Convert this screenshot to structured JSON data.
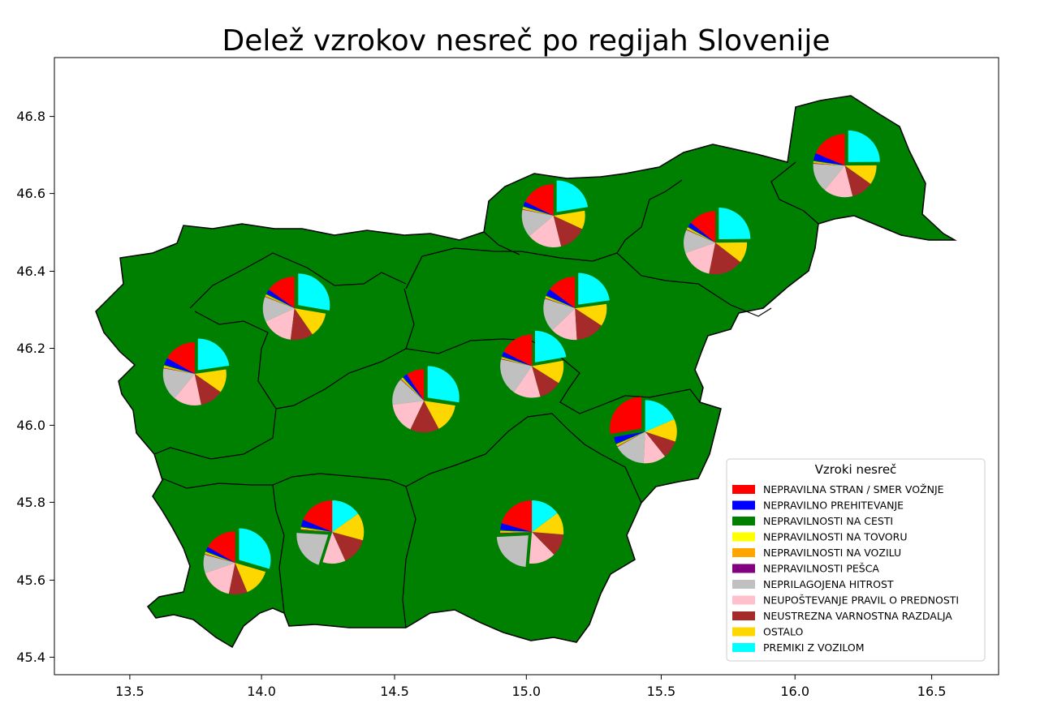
{
  "chart_data": {
    "type": "pie",
    "title": "Delež vzrokov nesreč po regijah Slovenije",
    "xlabel": "",
    "ylabel": "",
    "xlim": [
      13.25,
      16.75
    ],
    "ylim": [
      45.35,
      46.95
    ],
    "xticks": [
      "13.5",
      "14.0",
      "14.5",
      "15.0",
      "15.5",
      "16.0",
      "16.5"
    ],
    "yticks": [
      "45.4",
      "45.6",
      "45.8",
      "46.0",
      "46.2",
      "46.4",
      "46.6",
      "46.8"
    ],
    "grid": false,
    "map_fill_color": "#008000",
    "legend": {
      "title": "Vzroki nesreč",
      "placement": "lower-right"
    },
    "categories": [
      {
        "name": "NEPRAVILNA STRAN / SMER VOŽNJE",
        "color": "#ff0000"
      },
      {
        "name": "NEPRAVILNO PREHITEVANJE",
        "color": "#0000ff"
      },
      {
        "name": "NEPRAVILNOSTI NA CESTI",
        "color": "#008000"
      },
      {
        "name": "NEPRAVILNOSTI NA TOVORU",
        "color": "#ffff00"
      },
      {
        "name": "NEPRAVILNOSTI NA VOZILU",
        "color": "#ffa500"
      },
      {
        "name": "NEPRAVILNOSTI PEŠCA",
        "color": "#800080"
      },
      {
        "name": "NEPRILAGOJENA HITROST",
        "color": "#c0c0c0"
      },
      {
        "name": "NEUPOŠTEVANJE PRAVIL O PREDNOSTI",
        "color": "#ffc0cb"
      },
      {
        "name": "NEUSTREZNA VARNOSTNA RAZDALJA",
        "color": "#a52a2a"
      },
      {
        "name": "OSTALO",
        "color": "#ffd700"
      },
      {
        "name": "PREMIKI Z VOZILOM",
        "color": "#00ffff"
      }
    ],
    "regions": [
      {
        "lon": 16.18,
        "lat": 46.67,
        "values": [
          15,
          3,
          0.4,
          0.3,
          0.5,
          0.2,
          12,
          12,
          9,
          8,
          20
        ]
      },
      {
        "lon": 15.1,
        "lat": 46.54,
        "values": [
          15,
          2,
          0.4,
          0.4,
          0.6,
          0.2,
          12,
          15,
          12,
          8,
          19
        ]
      },
      {
        "lon": 15.7,
        "lat": 46.47,
        "values": [
          12,
          2,
          0.4,
          0.4,
          0.6,
          0.2,
          10,
          14,
          15,
          9,
          21
        ]
      },
      {
        "lon": 14.14,
        "lat": 46.3,
        "values": [
          13,
          2,
          0.4,
          0.4,
          0.6,
          0.2,
          11,
          14,
          10,
          11,
          24
        ]
      },
      {
        "lon": 15.18,
        "lat": 46.3,
        "values": [
          13,
          3,
          0.4,
          0.4,
          0.6,
          0.2,
          15,
          12,
          13,
          10,
          20
        ]
      },
      {
        "lon": 13.77,
        "lat": 46.13,
        "values": [
          14,
          3,
          0.4,
          0.4,
          0.6,
          0.2,
          14,
          12,
          10,
          10,
          19
        ]
      },
      {
        "lon": 15.02,
        "lat": 46.15,
        "values": [
          15,
          2,
          0.4,
          0.3,
          0.5,
          0.2,
          16,
          12,
          10,
          10,
          19
        ]
      },
      {
        "lon": 14.62,
        "lat": 46.06,
        "values": [
          8,
          2,
          0.4,
          0.4,
          0.6,
          0.2,
          12,
          14,
          13,
          13,
          24
        ]
      },
      {
        "lon": 15.44,
        "lat": 45.98,
        "values": [
          24,
          3,
          0.4,
          0.4,
          0.6,
          0.2,
          14,
          10,
          8,
          10,
          16
        ]
      },
      {
        "lon": 14.28,
        "lat": 45.72,
        "values": [
          16,
          3,
          0.4,
          0.4,
          0.6,
          0.2,
          18,
          10,
          12,
          12,
          13
        ]
      },
      {
        "lon": 15.02,
        "lat": 45.72,
        "values": [
          18,
          3,
          0.4,
          0.4,
          0.6,
          0.2,
          20,
          12,
          10,
          10,
          13
        ]
      },
      {
        "lon": 13.92,
        "lat": 45.64,
        "values": [
          14,
          2,
          0.4,
          0.4,
          0.6,
          0.2,
          8,
          14,
          8,
          12,
          25
        ]
      }
    ]
  }
}
